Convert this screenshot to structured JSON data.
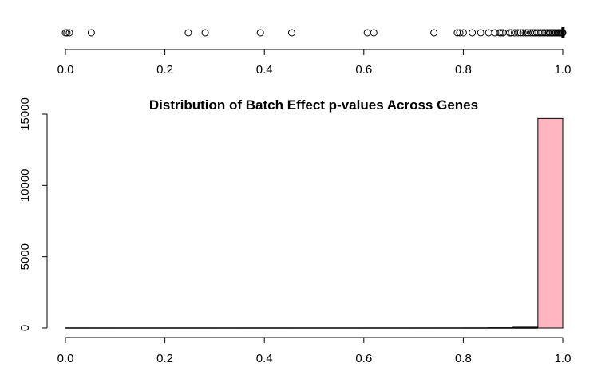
{
  "chart_data": [
    {
      "type": "scatter",
      "subtype": "boxplot-outliers",
      "orientation": "horizontal",
      "title": "",
      "xlabel": "",
      "ylabel": "",
      "xlim": [
        0,
        1
      ],
      "x_ticks": [
        0,
        0.2,
        0.4,
        0.6,
        0.8,
        1
      ],
      "x_tick_labels": [
        "0.0",
        "0.2",
        "0.4",
        "0.6",
        "0.8",
        "1.0"
      ],
      "grid": false,
      "points": [
        0.0,
        0.003,
        0.008,
        0.052,
        0.247,
        0.281,
        0.392,
        0.455,
        0.607,
        0.62,
        0.741,
        0.788,
        0.793,
        0.8,
        0.818,
        0.835,
        0.851,
        0.864,
        0.873,
        0.876,
        0.88,
        0.893,
        0.897,
        0.903,
        0.91,
        0.915,
        0.92,
        0.926,
        0.93,
        0.935,
        0.94,
        0.944,
        0.948,
        0.952,
        0.956,
        0.96,
        0.964,
        0.968,
        0.971,
        0.974,
        0.977,
        0.98,
        0.983,
        0.986,
        0.989,
        0.991,
        0.993,
        0.995,
        0.997,
        0.999,
        1.0
      ],
      "box": {
        "q1": 0.999,
        "median": 1.0,
        "q3": 1.0,
        "whisker_low": 0.999,
        "whisker_high": 1.0
      }
    },
    {
      "type": "bar",
      "subtype": "histogram",
      "title": "Distribution of Batch Effect p-values Across Genes",
      "xlabel": "",
      "ylabel": "",
      "xlim": [
        0,
        1
      ],
      "ylim": [
        0,
        15000
      ],
      "x_ticks": [
        0,
        0.2,
        0.4,
        0.6,
        0.8,
        1
      ],
      "x_tick_labels": [
        "0.0",
        "0.2",
        "0.4",
        "0.6",
        "0.8",
        "1.0"
      ],
      "y_ticks": [
        0,
        5000,
        10000,
        15000
      ],
      "y_tick_labels": [
        "0",
        "5000",
        "10000",
        "15000"
      ],
      "bin_edges": [
        0,
        0.05,
        0.1,
        0.15,
        0.2,
        0.25,
        0.3,
        0.35,
        0.4,
        0.45,
        0.5,
        0.55,
        0.6,
        0.65,
        0.7,
        0.75,
        0.8,
        0.85,
        0.9,
        0.95,
        1.0
      ],
      "values": [
        3,
        1,
        0,
        0,
        1,
        1,
        0,
        1,
        1,
        0,
        0,
        0,
        2,
        0,
        1,
        2,
        6,
        20,
        60,
        14700
      ],
      "bar_color": "#FFB6C1",
      "grid": false
    }
  ]
}
